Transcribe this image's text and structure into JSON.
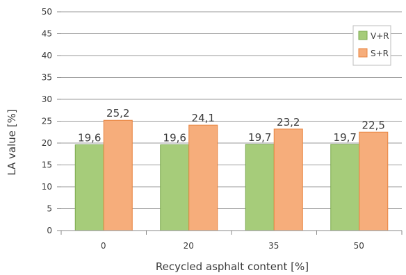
{
  "chart_data": {
    "type": "bar",
    "title": "",
    "xlabel": "Recycled asphalt content [%]",
    "ylabel": "LA value [%]",
    "categories": [
      "0",
      "20",
      "35",
      "50"
    ],
    "ylim": [
      0,
      50
    ],
    "yticks": [
      "0",
      "5",
      "10",
      "15",
      "20",
      "25",
      "30",
      "35",
      "40",
      "45",
      "50"
    ],
    "grid": true,
    "legend_position": "top-right",
    "series": [
      {
        "name": "V+R",
        "values": [
          19.6,
          19.6,
          19.7,
          19.7
        ],
        "labels": [
          "19,6",
          "19,6",
          "19,7",
          "19,7"
        ],
        "color": "#a6cc7a",
        "stroke": "#7aa84c"
      },
      {
        "name": "S+R",
        "values": [
          25.2,
          24.1,
          23.2,
          22.5
        ],
        "labels": [
          "25,2",
          "24,1",
          "23,2",
          "22,5"
        ],
        "color": "#f6ad7b",
        "stroke": "#e8843f"
      }
    ]
  }
}
